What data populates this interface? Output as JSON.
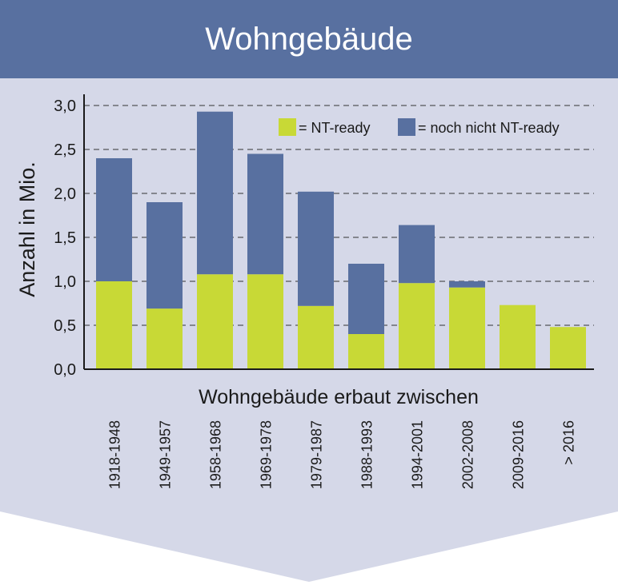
{
  "chart_data": {
    "type": "bar",
    "stacked": true,
    "title": "Wohngebäude",
    "xlabel": "Wohngebäude erbaut zwischen",
    "ylabel": "Anzahl in Mio.",
    "ylim": [
      0,
      3.0
    ],
    "yticks": [
      "0,0",
      "0,5",
      "1,0",
      "1,5",
      "2,0",
      "2,5",
      "3,0"
    ],
    "ytick_values": [
      0,
      0.5,
      1.0,
      1.5,
      2.0,
      2.5,
      3.0
    ],
    "grid": true,
    "legend_position": "top-right",
    "categories": [
      "1918-1948",
      "1949-1957",
      "1958-1968",
      "1969-1978",
      "1979-1987",
      "1988-1993",
      "1994-2001",
      "2002-2008",
      "2009-2016",
      "> 2016"
    ],
    "series": [
      {
        "name": "= NT-ready",
        "color": "#c8d936",
        "values": [
          1.0,
          0.69,
          1.08,
          1.08,
          0.72,
          0.4,
          0.98,
          0.93,
          0.73,
          0.48
        ]
      },
      {
        "name": "= noch nicht NT-ready",
        "color": "#5870a0",
        "values": [
          1.4,
          1.21,
          1.85,
          1.37,
          1.3,
          0.8,
          0.66,
          0.07,
          0.0,
          0.0
        ]
      }
    ]
  },
  "colors": {
    "header": "#5870a0",
    "background": "#d5d8e8",
    "axis": "#1a1a1a",
    "grid": "#333333"
  }
}
